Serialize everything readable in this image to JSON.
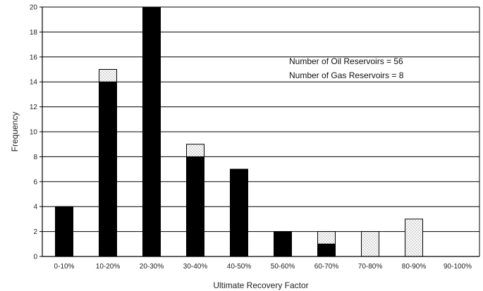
{
  "chart_data": {
    "type": "bar",
    "stacked": true,
    "categories": [
      "0-10%",
      "10-20%",
      "20-30%",
      "30-40%",
      "40-50%",
      "50-60%",
      "60-70%",
      "70-80%",
      "80-90%",
      "90-100%"
    ],
    "series": [
      {
        "values": [
          4,
          14,
          20,
          8,
          7,
          2,
          1,
          0,
          0,
          0
        ],
        "color": "#000000",
        "pattern": "solid"
      },
      {
        "values": [
          0,
          1,
          0,
          1,
          0,
          0,
          1,
          2,
          3,
          0
        ],
        "color": "#ffffff",
        "pattern": "dotted"
      }
    ],
    "xlabel": "Ultimate Recovery Factor",
    "ylabel": "Frequency",
    "ylim": [
      0,
      20
    ],
    "yticks": [
      0,
      2,
      4,
      6,
      8,
      10,
      12,
      14,
      16,
      18,
      20
    ],
    "grid": "horizontal",
    "annotations": [
      "Number of Oil Reservoirs = 56",
      "Number of Gas Reservoirs = 8"
    ]
  }
}
